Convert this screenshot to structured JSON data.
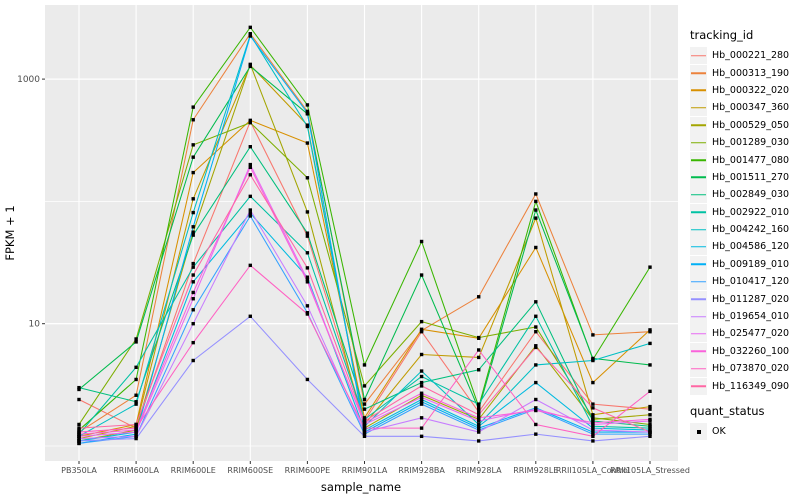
{
  "figure": {
    "x_axis_title": "sample_name",
    "y_axis_title": "FPKM + 1"
  },
  "legend": {
    "tracking_title": "tracking_id",
    "quant_title": "quant_status",
    "quant_items": [
      {
        "label": "OK"
      }
    ]
  },
  "colors": {
    "panel_background": "#EBEBEB",
    "gridline": "#FFFFFF",
    "tick_label": "#4D4D4D",
    "axis_title": "#000000",
    "point": "#000000",
    "legend_key_background": "#F2F2F2"
  },
  "chart_data": {
    "type": "line",
    "title": "",
    "xlabel": "sample_name",
    "ylabel": "FPKM + 1",
    "y_scale": "log10",
    "y_ticks": [
      10,
      1000
    ],
    "y_minor_ticks": [
      1,
      100
    ],
    "ylim": [
      1,
      3500
    ],
    "grid": true,
    "legend_position": "right",
    "point_shape": "filled-square",
    "x_categories": [
      "PB350LA",
      "RRIM600LA",
      "RRIM600LE",
      "RRIM600SE",
      "RRIM600PE",
      "RRIM901LA",
      "RRIM928BA",
      "RRIM928LA",
      "RRIM928LE",
      "RRII105LA_Control",
      "RRII105LA_Stressed"
    ],
    "series": [
      {
        "name": "Hb_000221_280",
        "color": "#F8766D",
        "values": [
          2.4,
          1.4,
          31,
          450,
          52,
          1.6,
          8.6,
          1.9,
          8.6,
          2.2,
          2.0
        ]
      },
      {
        "name": "Hb_000313_190",
        "color": "#EC823C",
        "values": [
          1.3,
          2.6,
          465,
          2350,
          545,
          2.2,
          8.8,
          16.6,
          115,
          8.1,
          8.6
        ]
      },
      {
        "name": "Hb_000322_020",
        "color": "#D89000",
        "values": [
          1.2,
          1.5,
          172,
          460,
          300,
          1.7,
          9.0,
          7.6,
          42,
          3.3,
          8.9
        ]
      },
      {
        "name": "Hb_000347_360",
        "color": "#C09B00",
        "values": [
          1.15,
          1.45,
          105,
          1300,
          420,
          1.5,
          5.6,
          5.3,
          73,
          1.8,
          2.1
        ]
      },
      {
        "name": "Hb_000529_050",
        "color": "#A3A500",
        "values": [
          1.1,
          1.35,
          56,
          1320,
          82,
          1.4,
          2.6,
          1.65,
          6.6,
          1.65,
          1.8
        ]
      },
      {
        "name": "Hb_001289_030",
        "color": "#7CAE00",
        "values": [
          1.5,
          7.5,
          290,
          440,
          156,
          3.1,
          10.4,
          7.7,
          9.4,
          1.7,
          1.5
        ]
      },
      {
        "name": "Hb_001477_080",
        "color": "#39B600",
        "values": [
          1.35,
          3.5,
          590,
          2650,
          615,
          4.6,
          47,
          2.1,
          100,
          5.1,
          29
        ]
      },
      {
        "name": "Hb_001511_270",
        "color": "#00BB4E",
        "values": [
          2.9,
          7.1,
          230,
          1270,
          520,
          2.4,
          25,
          2.0,
          85,
          5.2,
          4.6
        ]
      },
      {
        "name": "Hb_002849_030",
        "color": "#00BF7D",
        "values": [
          3.0,
          2.3,
          53,
          280,
          55,
          2.0,
          3.3,
          4.2,
          15.1,
          1.6,
          1.45
        ]
      },
      {
        "name": "Hb_002922_010",
        "color": "#00C1A3",
        "values": [
          1.25,
          4.4,
          29,
          110,
          38,
          1.65,
          3.7,
          2.2,
          11.5,
          1.45,
          1.4
        ]
      },
      {
        "name": "Hb_004242_160",
        "color": "#00BFC4",
        "values": [
          1.2,
          2.2,
          81,
          2300,
          410,
          1.45,
          4.1,
          1.5,
          4.6,
          5.0,
          6.9
        ]
      },
      {
        "name": "Hb_004586_120",
        "color": "#00BAE0",
        "values": [
          1.1,
          1.3,
          22,
          80,
          24,
          1.35,
          2.4,
          1.45,
          3.3,
          1.4,
          1.35
        ]
      },
      {
        "name": "Hb_009189_010",
        "color": "#00B0F6",
        "values": [
          1.05,
          1.25,
          62,
          2250,
          530,
          1.3,
          2.3,
          1.4,
          2.05,
          1.3,
          1.3
        ]
      },
      {
        "name": "Hb_010417_120",
        "color": "#35A2FF",
        "values": [
          1.05,
          1.2,
          13,
          76,
          12.3,
          1.25,
          2.2,
          1.35,
          2.0,
          1.25,
          1.25
        ]
      },
      {
        "name": "Hb_011287_020",
        "color": "#9590FF",
        "values": [
          1.1,
          1.15,
          5.0,
          11.5,
          3.5,
          1.2,
          1.2,
          1.1,
          1.25,
          1.1,
          1.2
        ]
      },
      {
        "name": "Hb_019654_010",
        "color": "#C77CFF",
        "values": [
          1.15,
          1.2,
          10,
          85,
          14,
          1.3,
          1.7,
          1.3,
          2.4,
          1.35,
          1.3
        ]
      },
      {
        "name": "Hb_025477_020",
        "color": "#E76BF3",
        "values": [
          1.2,
          1.3,
          16,
          200,
          23,
          1.5,
          2.5,
          1.6,
          2.0,
          1.5,
          1.6
        ]
      },
      {
        "name": "Hb_032260_100",
        "color": "#FA62DB",
        "values": [
          1.25,
          1.35,
          18,
          190,
          22,
          1.55,
          2.7,
          1.7,
          1.95,
          1.55,
          1.65
        ]
      },
      {
        "name": "Hb_073870_020",
        "color": "#FF61C3",
        "values": [
          1.3,
          1.4,
          7.0,
          30,
          12,
          1.4,
          1.4,
          6.1,
          1.5,
          1.2,
          2.8
        ]
      },
      {
        "name": "Hb_116349_090",
        "color": "#FF67A4",
        "values": [
          1.4,
          1.5,
          25,
          165,
          28.6,
          1.6,
          3.1,
          1.8,
          6.4,
          2.05,
          1.3
        ]
      }
    ]
  }
}
